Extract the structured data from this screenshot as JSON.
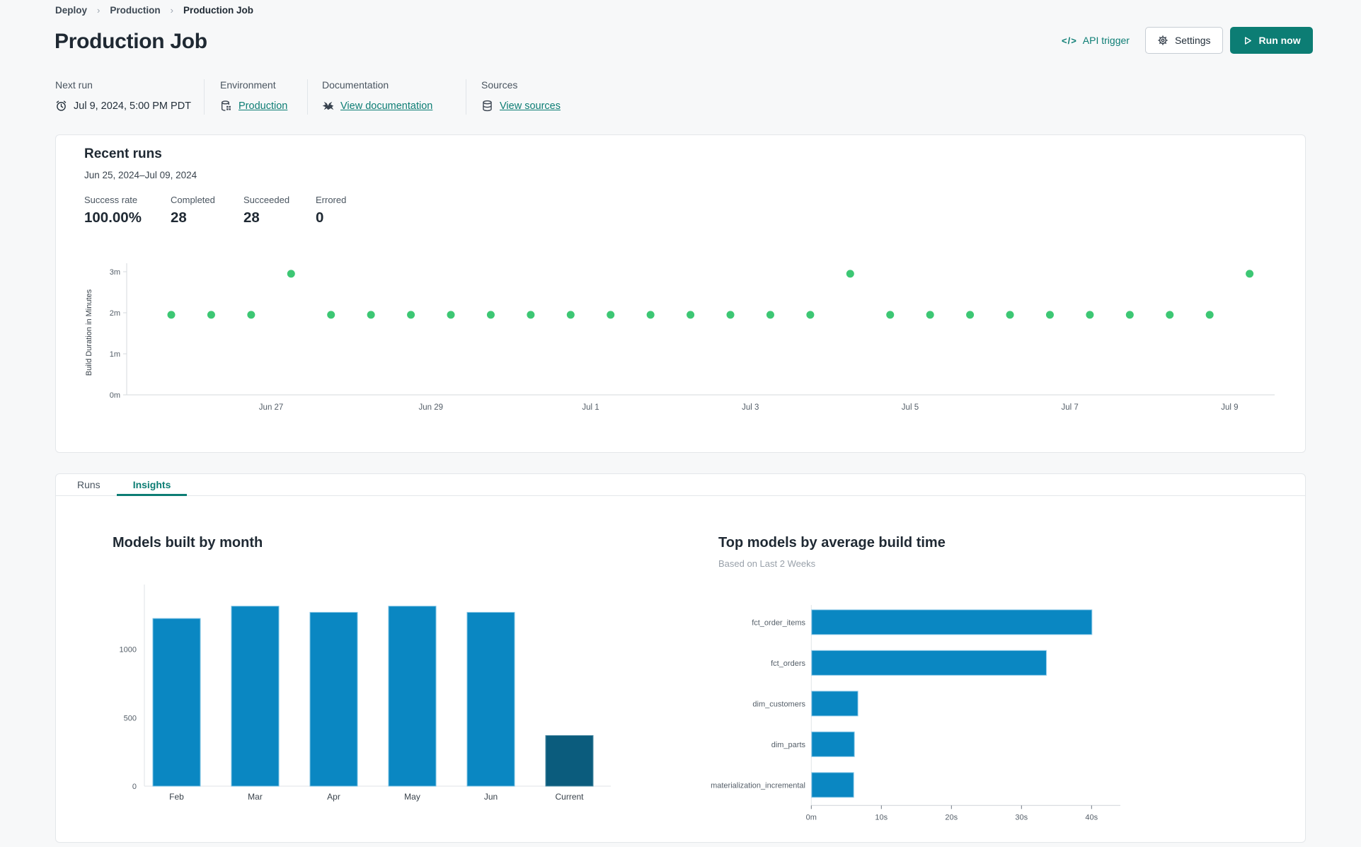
{
  "breadcrumb": {
    "items": [
      "Deploy",
      "Production",
      "Production Job"
    ],
    "separator": "›"
  },
  "header": {
    "title": "Production Job",
    "api_trigger_label": "API trigger",
    "api_trigger_glyph": "</>",
    "settings_label": "Settings",
    "run_now_label": "Run now"
  },
  "meta": {
    "next_run": {
      "label": "Next run",
      "value": "Jul 9, 2024, 5:00 PM PDT"
    },
    "environment": {
      "label": "Environment",
      "value": "Production"
    },
    "documentation": {
      "label": "Documentation",
      "value": "View documentation"
    },
    "sources": {
      "label": "Sources",
      "value": "View sources"
    }
  },
  "recent_runs": {
    "title": "Recent runs",
    "date_range": "Jun 25, 2024–Jul 09, 2024",
    "stats": [
      {
        "label": "Success rate",
        "value": "100.00%"
      },
      {
        "label": "Completed",
        "value": "28"
      },
      {
        "label": "Succeeded",
        "value": "28"
      },
      {
        "label": "Errored",
        "value": "0"
      }
    ]
  },
  "tabs": {
    "items": [
      {
        "label": "Runs",
        "active": false
      },
      {
        "label": "Insights",
        "active": true
      }
    ]
  },
  "colors": {
    "accent_teal": "#0c7d74",
    "dot_green": "#3dc774",
    "bar_blue": "#0a87c2",
    "bar_navy": "#0b5c7d"
  },
  "chart_data": [
    {
      "type": "scatter",
      "title": "Recent runs build duration",
      "ylabel": "Build Duration in Minutes",
      "yticks": [
        "0m",
        "1m",
        "2m",
        "3m"
      ],
      "ylim": [
        0,
        3.2
      ],
      "grid": false,
      "point_color": "#3dc774",
      "xticklabels": [
        "Jun 27",
        "Jun 29",
        "Jul 1",
        "Jul 3",
        "Jul 5",
        "Jul 7",
        "Jul 9"
      ],
      "xtick_positions": [
        2.5,
        6.5,
        10.5,
        14.5,
        18.5,
        22.5,
        26.5
      ],
      "values_minutes": [
        1.95,
        1.95,
        1.95,
        2.95,
        1.95,
        1.95,
        1.95,
        1.95,
        1.95,
        1.95,
        1.95,
        1.95,
        1.95,
        1.95,
        1.95,
        1.95,
        1.95,
        2.95,
        1.95,
        1.95,
        1.95,
        1.95,
        1.95,
        1.95,
        1.95,
        1.95,
        1.95,
        2.95
      ]
    },
    {
      "type": "bar",
      "title": "Models built by month",
      "categories": [
        "Feb",
        "Mar",
        "Apr",
        "May",
        "Jun",
        "Current"
      ],
      "values": [
        1225,
        1315,
        1270,
        1315,
        1270,
        370
      ],
      "yticks": [
        0,
        500,
        1000
      ],
      "ylim": [
        0,
        1450
      ],
      "bar_color": "#0a87c2",
      "current_color": "#0b5c7d",
      "xlabel": "",
      "ylabel": ""
    },
    {
      "type": "horizontal_bar",
      "title": "Top models by average build time",
      "subtitle": "Based on Last 2 Weeks",
      "categories": [
        "fct_order_items",
        "fct_orders",
        "dim_customers",
        "dim_parts",
        "materialization_incremental"
      ],
      "values_seconds": [
        40,
        33.5,
        6.6,
        6.1,
        6.0
      ],
      "xticks": [
        "0m",
        "10s",
        "20s",
        "30s",
        "40s"
      ],
      "xtick_seconds": [
        0,
        10,
        20,
        30,
        40
      ],
      "xlim": [
        0,
        44
      ],
      "bar_color": "#0a87c2"
    }
  ]
}
